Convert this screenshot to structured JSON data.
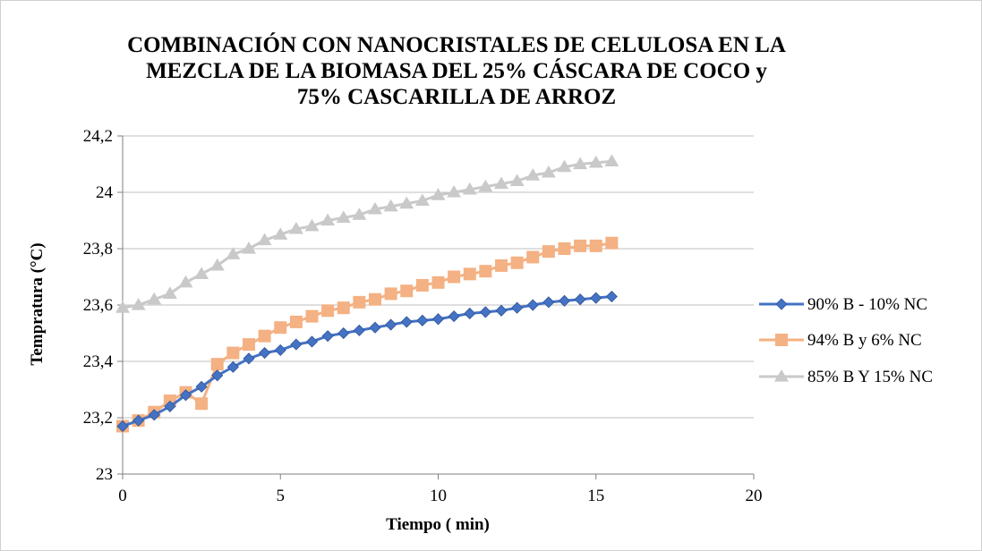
{
  "chart_data": {
    "type": "line",
    "title_lines": [
      "COMBINACIÓN CON NANOCRISTALES DE CELULOSA EN LA",
      "MEZCLA DE  LA BIOMASA DEL 25%  CÁSCARA DE COCO  y",
      "75% CASCARILLA DE ARROZ"
    ],
    "xlabel": "Tiempo ( min)",
    "ylabel": "Tempratura (°C)",
    "xlim": [
      0,
      20
    ],
    "ylim": [
      23,
      24.2
    ],
    "xticks": [
      0,
      5,
      10,
      15,
      20
    ],
    "xtick_labels": [
      "0",
      "5",
      "10",
      "15",
      "20"
    ],
    "yticks": [
      23,
      23.2,
      23.4,
      23.6,
      23.8,
      24,
      24.2
    ],
    "ytick_labels": [
      "23",
      "23,2",
      "23,4",
      "23,6",
      "23,8",
      "24",
      "24,2"
    ],
    "grid": "horizontal",
    "legend_position": "right",
    "x": [
      0,
      0.5,
      1,
      1.5,
      2,
      2.5,
      3,
      3.5,
      4,
      4.5,
      5,
      5.5,
      6,
      6.5,
      7,
      7.5,
      8,
      8.5,
      9,
      9.5,
      10,
      10.5,
      11,
      11.5,
      12,
      12.5,
      13,
      13.5,
      14,
      14.5,
      15,
      15.5
    ],
    "series": [
      {
        "name": "90% B - 10% NC",
        "color": "#4472c4",
        "marker": "diamond",
        "values": [
          23.17,
          23.19,
          23.21,
          23.24,
          23.28,
          23.31,
          23.35,
          23.38,
          23.41,
          23.43,
          23.44,
          23.46,
          23.47,
          23.49,
          23.5,
          23.51,
          23.52,
          23.53,
          23.54,
          23.545,
          23.55,
          23.56,
          23.57,
          23.575,
          23.58,
          23.59,
          23.6,
          23.61,
          23.615,
          23.62,
          23.625,
          23.63
        ]
      },
      {
        "name": "94% B y 6% NC",
        "color": "#f4b183",
        "marker": "square",
        "values": [
          23.17,
          23.19,
          23.22,
          23.26,
          23.29,
          23.25,
          23.39,
          23.43,
          23.46,
          23.49,
          23.52,
          23.54,
          23.56,
          23.58,
          23.59,
          23.61,
          23.62,
          23.64,
          23.65,
          23.67,
          23.68,
          23.7,
          23.71,
          23.72,
          23.74,
          23.75,
          23.77,
          23.79,
          23.8,
          23.81,
          23.81,
          23.82
        ]
      },
      {
        "name": "85% B Y 15% NC",
        "color": "#c9c9c9",
        "marker": "triangle",
        "values": [
          23.59,
          23.6,
          23.62,
          23.64,
          23.68,
          23.71,
          23.74,
          23.78,
          23.8,
          23.83,
          23.85,
          23.87,
          23.88,
          23.9,
          23.91,
          23.92,
          23.94,
          23.95,
          23.96,
          23.97,
          23.99,
          24,
          24.01,
          24.02,
          24.03,
          24.04,
          24.06,
          24.07,
          24.09,
          24.1,
          24.105,
          24.11
        ]
      }
    ]
  }
}
